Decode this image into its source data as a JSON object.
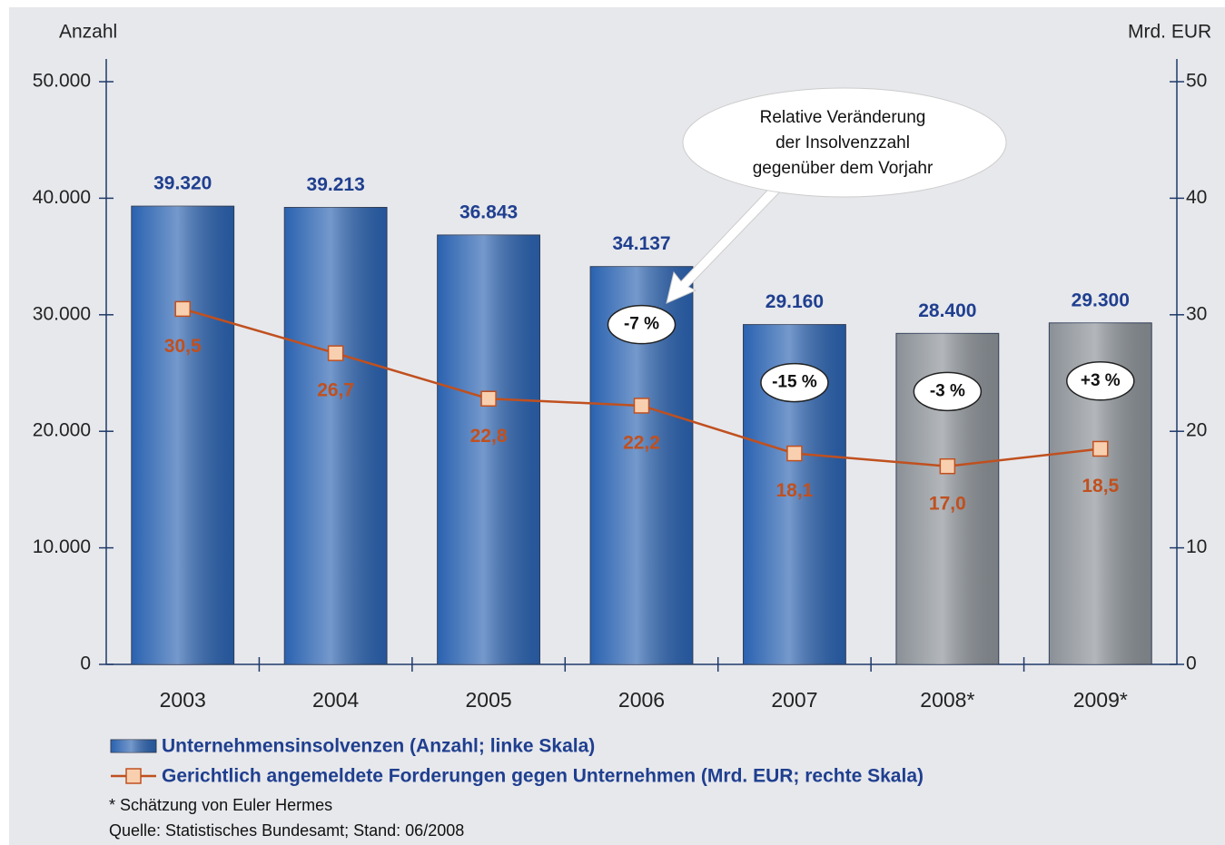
{
  "chart_data": {
    "type": "bar-line",
    "y_label": "Anzahl",
    "y2_label": "Mrd. EUR",
    "categories": [
      "2003",
      "2004",
      "2005",
      "2006",
      "2007",
      "2008*",
      "2009*"
    ],
    "series": [
      {
        "name": "Unternehmensinsolvenzen (Anzahl; linke Skala)",
        "type": "bar",
        "color": "#2a62b0",
        "colors": [
          "#2a62b0",
          "#2a62b0",
          "#2a62b0",
          "#2a62b0",
          "#2a62b0",
          "#8a9096",
          "#8a9096"
        ],
        "values": [
          39320,
          39213,
          36843,
          34137,
          29160,
          28400,
          29300
        ],
        "value_labels": [
          "39.320",
          "39.213",
          "36.843",
          "34.137",
          "29.160",
          "28.400",
          "29.300"
        ]
      },
      {
        "name": "Gerichtlich angemeldete Forderungen gegen Unternehmen (Mrd. EUR; rechte Skala)",
        "type": "line",
        "axis": "y2",
        "color": "#c0501f",
        "marker_color": "#f8d0b0",
        "values": [
          30.5,
          26.7,
          22.8,
          22.2,
          18.1,
          17.0,
          18.5
        ],
        "value_labels": [
          "30,5",
          "26,7",
          "22,8",
          "22,2",
          "18,1",
          "17,0",
          "18,5"
        ]
      }
    ],
    "change_labels": [
      null,
      null,
      null,
      "-7 %",
      "-15 %",
      "-3 %",
      "+3 %"
    ],
    "callout": [
      "Relative Veränderung",
      "der Insolvenzzahl",
      "gegenüber dem Vorjahr"
    ],
    "ylim": [
      0,
      50000
    ],
    "yticks": [
      0,
      {
        "value": 10000,
        "label": "10.000"
      },
      {
        "value": 20000,
        "label": "20.000"
      },
      {
        "value": 30000,
        "label": "30.000"
      },
      {
        "value": 40000,
        "label": "40.000"
      },
      {
        "value": 50000,
        "label": "50.000"
      }
    ],
    "y2lim": [
      0,
      50
    ],
    "y2ticks": [
      0,
      10,
      20,
      30,
      40,
      50
    ],
    "footnotes": [
      "* Schätzung von Euler Hermes",
      "Quelle: Statistisches Bundesamt; Stand: 06/2008"
    ]
  }
}
